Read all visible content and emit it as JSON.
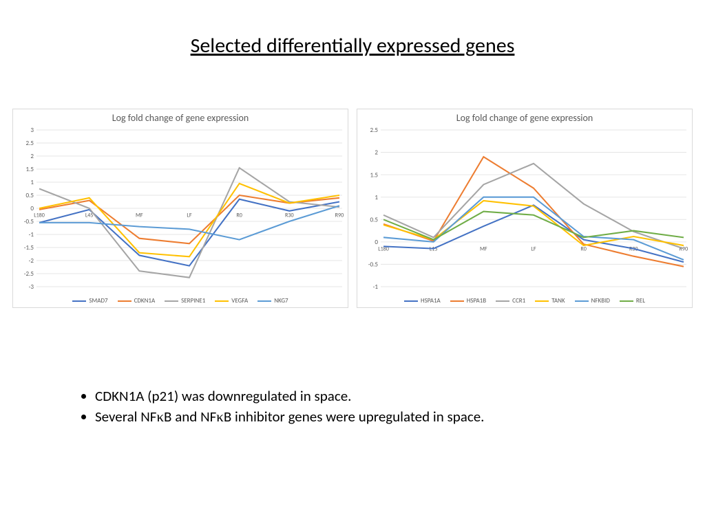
{
  "title": "Selected differentially expressed genes",
  "chart1": {
    "type": "line",
    "title": "Log fold change of gene expression",
    "title_color": "#595959",
    "title_fontsize": 14,
    "categories": [
      "L180",
      "L45",
      "MF",
      "LF",
      "R0",
      "R30",
      "R90"
    ],
    "ylim": [
      -3,
      3
    ],
    "ytick_step": 0.5,
    "grid_color": "#e6e6e6",
    "background_color": "#ffffff",
    "border_color": "#d9d9d9",
    "axis_label_color": "#595959",
    "axis_label_fontsize": 9,
    "line_width": 2,
    "series": [
      {
        "name": "SMAD7",
        "color": "#4472c4",
        "values": [
          -0.55,
          -0.05,
          -1.8,
          -2.2,
          0.35,
          -0.1,
          0.25
        ]
      },
      {
        "name": "CDKN1A",
        "color": "#ed7d31",
        "values": [
          -0.05,
          0.3,
          -1.15,
          -1.35,
          0.5,
          0.2,
          0.4
        ]
      },
      {
        "name": "SERPINE1",
        "color": "#a5a5a5",
        "values": [
          0.75,
          0.0,
          -2.4,
          -2.65,
          1.55,
          0.25,
          0.05
        ]
      },
      {
        "name": "VEGFA",
        "color": "#ffc000",
        "values": [
          0.0,
          0.4,
          -1.7,
          -1.85,
          0.95,
          0.2,
          0.5
        ]
      },
      {
        "name": "NKG7",
        "color": "#5b9bd5",
        "values": [
          -0.55,
          -0.55,
          -0.7,
          -0.8,
          -1.2,
          -0.5,
          0.1
        ]
      }
    ]
  },
  "chart2": {
    "type": "line",
    "title": "Log fold change of gene expression",
    "title_color": "#595959",
    "title_fontsize": 14,
    "categories": [
      "L180",
      "L15",
      "MF",
      "LF",
      "R0",
      "R30",
      "R90"
    ],
    "ylim": [
      -1,
      2.5
    ],
    "ytick_step": 0.5,
    "grid_color": "#e6e6e6",
    "background_color": "#ffffff",
    "border_color": "#d9d9d9",
    "axis_label_color": "#595959",
    "axis_label_fontsize": 9,
    "line_width": 2,
    "series": [
      {
        "name": "HSPA1A",
        "color": "#4472c4",
        "values": [
          -0.1,
          -0.15,
          0.35,
          0.82,
          0.05,
          -0.15,
          -0.45
        ]
      },
      {
        "name": "HSPA1B",
        "color": "#ed7d31",
        "values": [
          0.4,
          0.02,
          1.9,
          1.2,
          -0.05,
          -0.32,
          -0.55
        ]
      },
      {
        "name": "CCR1",
        "color": "#a5a5a5",
        "values": [
          0.6,
          0.1,
          1.28,
          1.75,
          0.85,
          0.23,
          -0.15
        ]
      },
      {
        "name": "TANK",
        "color": "#ffc000",
        "values": [
          0.38,
          0.05,
          0.92,
          0.8,
          -0.08,
          0.12,
          -0.08
        ]
      },
      {
        "name": "NFKBID",
        "color": "#5b9bd5",
        "values": [
          0.1,
          0.0,
          1.0,
          1.0,
          0.12,
          0.05,
          -0.4
        ]
      },
      {
        "name": "REL",
        "color": "#70ad47",
        "values": [
          0.5,
          0.05,
          0.68,
          0.6,
          0.1,
          0.25,
          0.1
        ]
      }
    ]
  },
  "bullets": {
    "item1_pre": "CDKN1A (p21) was downregulated in space.",
    "item2_pre": "Several NF",
    "item2_mid": "B and NF",
    "item2_post": "B inhibitor genes were upregulated in space.",
    "kappa": "κ"
  }
}
